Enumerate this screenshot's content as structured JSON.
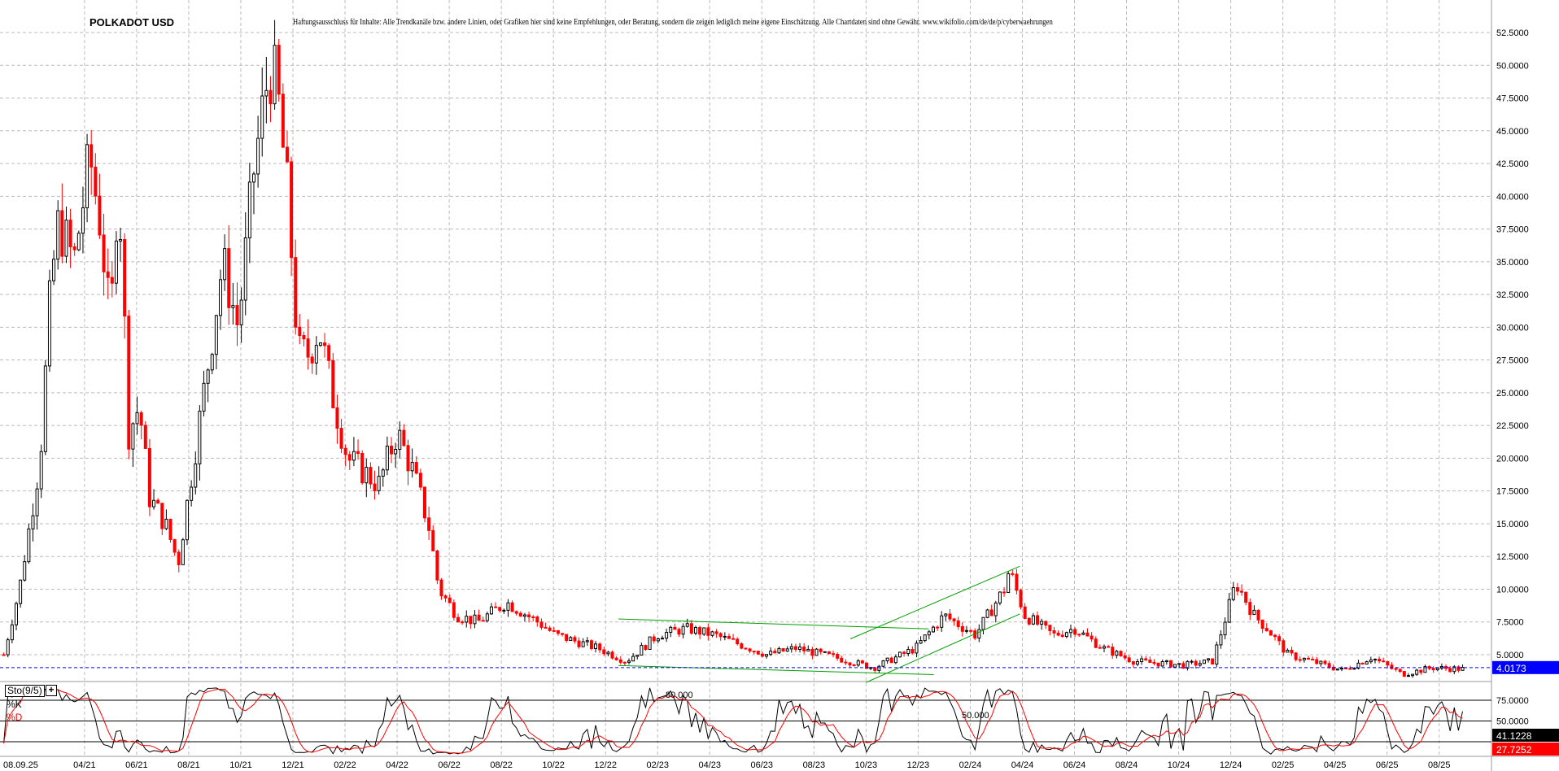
{
  "chart_data": {
    "type": "candlestick",
    "title": "POLKADOT USD",
    "disclaimer": "Haftungsausschluss für Inhalte: Alle Trendkanäle bzw. andere Linien, oder Grafiken hier sind keine Empfehlungen, oder Beratung, sondern die zeigen lediglich meine eigene Einschätzung. Alle Chartdaten sind ohne Gewähr.  www.wikifolio.com/de/de/p/cyberwaehrungen",
    "x_unit": "months since 04/2021",
    "price_path": [
      [
        -3.1,
        5
      ],
      [
        -2.5,
        10
      ],
      [
        -1.7,
        20
      ],
      [
        -1.3,
        33
      ],
      [
        -1.0,
        38
      ],
      [
        -0.4,
        35
      ],
      [
        0.2,
        43
      ],
      [
        0.6,
        38
      ],
      [
        1.0,
        30
      ],
      [
        1.3,
        42
      ],
      [
        1.7,
        22
      ],
      [
        2.1,
        24
      ],
      [
        2.5,
        17
      ],
      [
        3.1,
        15
      ],
      [
        3.6,
        12
      ],
      [
        4.2,
        20
      ],
      [
        4.8,
        28
      ],
      [
        5.3,
        35
      ],
      [
        5.9,
        30
      ],
      [
        6.5,
        42
      ],
      [
        7.1,
        50
      ],
      [
        7.4,
        48
      ],
      [
        7.8,
        40
      ],
      [
        8.2,
        28
      ],
      [
        8.6,
        28
      ],
      [
        9.0,
        30
      ],
      [
        9.5,
        25
      ],
      [
        10.1,
        20
      ],
      [
        10.7,
        19
      ],
      [
        11.3,
        18
      ],
      [
        12.0,
        22
      ],
      [
        12.6,
        19
      ],
      [
        13.2,
        15
      ],
      [
        13.6,
        10
      ],
      [
        14.3,
        8
      ],
      [
        15.1,
        7.5
      ],
      [
        16.2,
        9
      ],
      [
        17.4,
        7.5
      ],
      [
        18.1,
        6.5
      ],
      [
        19.7,
        5.5
      ],
      [
        20.8,
        4.5
      ],
      [
        22.0,
        6.5
      ],
      [
        23.1,
        7
      ],
      [
        24.2,
        6.5
      ],
      [
        26.2,
        5
      ],
      [
        27.3,
        5.5
      ],
      [
        28.8,
        4.8
      ],
      [
        30.3,
        4
      ],
      [
        31.9,
        5.5
      ],
      [
        33.0,
        8
      ],
      [
        34.2,
        6.5
      ],
      [
        35.3,
        10
      ],
      [
        35.5,
        11.5
      ],
      [
        36.1,
        8
      ],
      [
        37.2,
        6.5
      ],
      [
        38.0,
        7
      ],
      [
        39.1,
        5.5
      ],
      [
        40.3,
        4.5
      ],
      [
        42.2,
        4.2
      ],
      [
        43.3,
        4.5
      ],
      [
        44.2,
        10.5
      ],
      [
        44.9,
        8
      ],
      [
        45.4,
        7
      ],
      [
        46.2,
        5
      ],
      [
        47.1,
        4.5
      ],
      [
        48.3,
        3.8
      ],
      [
        49.4,
        4.8
      ],
      [
        50.6,
        3.5
      ],
      [
        51.7,
        4
      ],
      [
        53.0,
        3.9
      ]
    ],
    "trendlines": [
      [
        [
          20.5,
          7.73
        ],
        [
          32.4,
          6.97
        ]
      ],
      [
        [
          20.5,
          4.17
        ],
        [
          32.6,
          3.48
        ]
      ],
      [
        [
          29.4,
          6.21
        ],
        [
          35.9,
          11.75
        ]
      ],
      [
        [
          30.0,
          2.88
        ],
        [
          35.9,
          8.11
        ]
      ]
    ],
    "y_ticks": [
      "52.5000",
      "50.0000",
      "47.5000",
      "45.0000",
      "42.5000",
      "40.0000",
      "37.5000",
      "35.0000",
      "32.5000",
      "30.0000",
      "27.5000",
      "25.0000",
      "22.5000",
      "20.0000",
      "17.5000",
      "15.0000",
      "12.5000",
      "10.0000",
      "7.5000",
      "5.0000"
    ],
    "ylim": [
      2.5,
      52.5
    ],
    "last_price": "4.0173",
    "x_ticks": [
      "08.09.25",
      "04/21",
      "06/21",
      "08/21",
      "10/21",
      "12/21",
      "02/22",
      "04/22",
      "06/22",
      "08/22",
      "10/22",
      "12/22",
      "02/23",
      "04/23",
      "06/23",
      "08/23",
      "10/23",
      "12/23",
      "02/24",
      "04/24",
      "06/24",
      "08/24",
      "10/24",
      "12/24",
      "02/25",
      "04/25",
      "06/25",
      "08/25"
    ],
    "x_tick_months": [
      -3.1,
      0,
      2,
      4,
      6,
      8,
      10,
      12,
      14,
      16,
      18,
      20,
      22,
      24,
      26,
      28,
      30,
      32,
      34,
      36,
      38,
      40,
      42,
      44,
      46,
      48,
      50,
      52
    ],
    "oscillator": {
      "name": "Sto(9/5)",
      "k_label": "%K",
      "d_label": "%D",
      "levels": [
        "75.0000",
        "50.0000"
      ],
      "k_value": "41.1228",
      "d_value": "27.7252",
      "annot1": "80.000",
      "annot2": "50.000"
    },
    "colors": {
      "up": "#000000",
      "down": "#ff0000",
      "trend": "#00a000",
      "last": "#0000ff"
    }
  }
}
